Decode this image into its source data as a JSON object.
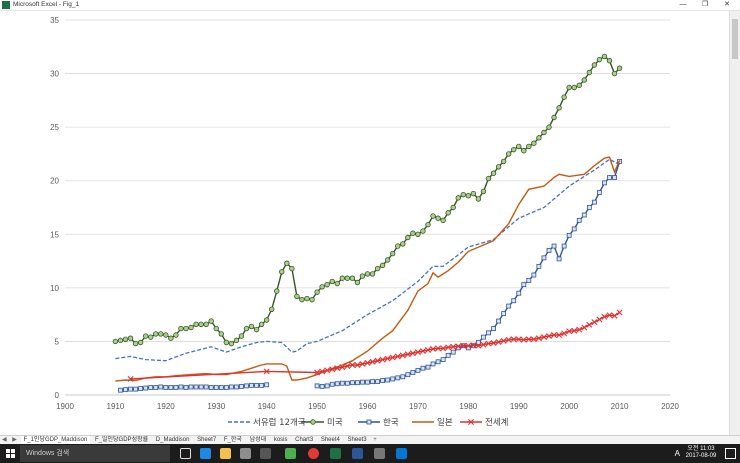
{
  "window": {
    "title": "Microsoft Excel - Fig_1",
    "minimize_glyph": "—",
    "restore_glyph": "❐",
    "close_glyph": "✕"
  },
  "sheet_tabs": [
    "F_1인당GDP_Maddison",
    "F_일인당GDP성장률",
    "D_Maddison",
    "Sheet7",
    "F_한국",
    "남성대",
    "kosis",
    "Chart3",
    "Sheet4",
    "Sheet3"
  ],
  "sheet_tab_nav": [
    "◀",
    "▶",
    "+"
  ],
  "taskbar": {
    "search_placeholder": "Windows 검색",
    "time": "오전 11:03",
    "date": "2017-08-09",
    "lang": "A"
  },
  "colors": {
    "west_europe": "#4472c4",
    "usa": "#375623",
    "usa_marker_fill": "#a9d08e",
    "korea": "#2f5597",
    "korea_marker_fill": "#dae3f3",
    "japan": "#c55a11",
    "world": "#e03030"
  },
  "chart_data": {
    "type": "line",
    "xlim": [
      1900,
      2020
    ],
    "ylim": [
      0,
      35
    ],
    "x_ticks": [
      1900,
      1910,
      1920,
      1930,
      1940,
      1950,
      1960,
      1970,
      1980,
      1990,
      2000,
      2010,
      2020
    ],
    "y_ticks": [
      0,
      5,
      10,
      15,
      20,
      25,
      30,
      35
    ],
    "grid": "horizontal",
    "legend_placement": "bottom",
    "series": [
      {
        "name": "서유럽 12개국",
        "style": "dashed",
        "x": [
          1910,
          1913,
          1916,
          1920,
          1924,
          1929,
          1932,
          1935,
          1938,
          1940,
          1943,
          1945,
          1946,
          1948,
          1950,
          1955,
          1960,
          1965,
          1970,
          1973,
          1975,
          1980,
          1985,
          1990,
          1995,
          2000,
          2005,
          2008,
          2010
        ],
        "values": [
          3.4,
          3.6,
          3.3,
          3.2,
          3.9,
          4.5,
          4.0,
          4.5,
          4.9,
          5.0,
          4.9,
          4.0,
          4.1,
          4.8,
          5.0,
          6.0,
          7.5,
          8.8,
          10.6,
          12.0,
          12.0,
          13.8,
          14.5,
          16.5,
          17.5,
          19.5,
          21.0,
          22.0,
          21.5
        ]
      },
      {
        "name": "미국",
        "style": "solid-circle",
        "x": [
          1910,
          1911,
          1912,
          1913,
          1914,
          1915,
          1916,
          1917,
          1918,
          1919,
          1920,
          1921,
          1922,
          1923,
          1924,
          1925,
          1926,
          1927,
          1928,
          1929,
          1930,
          1931,
          1932,
          1933,
          1934,
          1935,
          1936,
          1937,
          1938,
          1939,
          1940,
          1941,
          1942,
          1943,
          1944,
          1945,
          1946,
          1947,
          1948,
          1949,
          1950,
          1951,
          1952,
          1953,
          1954,
          1955,
          1956,
          1957,
          1958,
          1959,
          1960,
          1961,
          1962,
          1963,
          1964,
          1965,
          1966,
          1967,
          1968,
          1969,
          1970,
          1971,
          1972,
          1973,
          1974,
          1975,
          1976,
          1977,
          1978,
          1979,
          1980,
          1981,
          1982,
          1983,
          1984,
          1985,
          1986,
          1987,
          1988,
          1989,
          1990,
          1991,
          1992,
          1993,
          1994,
          1995,
          1996,
          1997,
          1998,
          1999,
          2000,
          2001,
          2002,
          2003,
          2004,
          2005,
          2006,
          2007,
          2008,
          2009,
          2010
        ],
        "values": [
          5.0,
          5.1,
          5.2,
          5.3,
          4.8,
          4.9,
          5.5,
          5.4,
          5.7,
          5.7,
          5.6,
          5.3,
          5.6,
          6.2,
          6.2,
          6.3,
          6.6,
          6.6,
          6.6,
          6.9,
          6.2,
          5.7,
          4.9,
          4.8,
          5.1,
          5.5,
          6.2,
          6.4,
          6.1,
          6.6,
          7.0,
          8.0,
          9.7,
          11.5,
          12.3,
          11.8,
          9.2,
          8.9,
          9.0,
          8.9,
          9.6,
          10.1,
          10.3,
          10.6,
          10.4,
          10.9,
          10.9,
          10.9,
          10.5,
          11.1,
          11.3,
          11.3,
          11.8,
          12.1,
          12.6,
          13.2,
          13.9,
          14.1,
          14.7,
          15.1,
          15.0,
          15.3,
          15.9,
          16.7,
          16.5,
          16.3,
          17.0,
          17.5,
          18.4,
          18.7,
          18.6,
          18.8,
          18.3,
          19.0,
          20.2,
          20.7,
          21.3,
          21.8,
          22.5,
          22.9,
          23.2,
          22.8,
          23.2,
          23.5,
          24.0,
          24.5,
          25.0,
          25.9,
          26.8,
          27.8,
          28.7,
          28.7,
          28.9,
          29.4,
          30.1,
          30.8,
          31.3,
          31.6,
          31.2,
          30.0,
          30.5
        ]
      },
      {
        "name": "한국",
        "style": "solid-square",
        "x": [
          1911,
          1912,
          1913,
          1914,
          1915,
          1916,
          1917,
          1918,
          1919,
          1920,
          1921,
          1922,
          1923,
          1924,
          1925,
          1926,
          1927,
          1928,
          1929,
          1930,
          1931,
          1932,
          1933,
          1934,
          1935,
          1936,
          1937,
          1938,
          1939,
          1940,
          1950,
          1951,
          1952,
          1953,
          1954,
          1955,
          1956,
          1957,
          1958,
          1959,
          1960,
          1961,
          1962,
          1963,
          1964,
          1965,
          1966,
          1967,
          1968,
          1969,
          1970,
          1971,
          1972,
          1973,
          1974,
          1975,
          1976,
          1977,
          1978,
          1979,
          1980,
          1981,
          1982,
          1983,
          1984,
          1985,
          1986,
          1987,
          1988,
          1989,
          1990,
          1991,
          1992,
          1993,
          1994,
          1995,
          1996,
          1997,
          1998,
          1999,
          2000,
          2001,
          2002,
          2003,
          2004,
          2005,
          2006,
          2007,
          2008,
          2009,
          2010
        ],
        "values": [
          0.45,
          0.5,
          0.55,
          0.55,
          0.6,
          0.65,
          0.7,
          0.7,
          0.75,
          0.7,
          0.7,
          0.7,
          0.75,
          0.7,
          0.75,
          0.75,
          0.75,
          0.75,
          0.7,
          0.7,
          0.7,
          0.7,
          0.75,
          0.75,
          0.8,
          0.85,
          0.9,
          0.9,
          0.9,
          0.95,
          0.85,
          0.8,
          0.85,
          1.0,
          1.05,
          1.1,
          1.1,
          1.15,
          1.15,
          1.2,
          1.2,
          1.25,
          1.25,
          1.35,
          1.4,
          1.5,
          1.6,
          1.7,
          1.9,
          2.1,
          2.3,
          2.5,
          2.6,
          2.9,
          3.1,
          3.3,
          3.7,
          4.0,
          4.4,
          4.6,
          4.4,
          4.6,
          4.9,
          5.4,
          5.8,
          6.2,
          6.9,
          7.6,
          8.3,
          8.8,
          9.5,
          10.3,
          10.7,
          11.2,
          12.0,
          12.8,
          13.5,
          13.9,
          12.7,
          13.9,
          14.9,
          15.5,
          16.3,
          16.8,
          17.5,
          18.0,
          18.9,
          19.8,
          20.3,
          20.3,
          21.8
        ]
      },
      {
        "name": "일본",
        "style": "solid",
        "x": [
          1910,
          1912,
          1914,
          1916,
          1918,
          1920,
          1922,
          1925,
          1928,
          1930,
          1932,
          1935,
          1937,
          1939,
          1940,
          1941,
          1943,
          1944,
          1945,
          1946,
          1948,
          1950,
          1952,
          1955,
          1957,
          1960,
          1963,
          1965,
          1968,
          1970,
          1972,
          1973,
          1974,
          1976,
          1978,
          1980,
          1983,
          1985,
          1988,
          1990,
          1992,
          1995,
          1997,
          1998,
          2000,
          2003,
          2005,
          2007,
          2008,
          2009,
          2010
        ],
        "values": [
          1.3,
          1.4,
          1.35,
          1.6,
          1.7,
          1.7,
          1.8,
          1.9,
          2.0,
          1.9,
          1.9,
          2.2,
          2.5,
          2.8,
          2.9,
          2.9,
          2.9,
          2.7,
          1.4,
          1.4,
          1.6,
          1.9,
          2.3,
          2.8,
          3.2,
          4.1,
          5.3,
          6.0,
          7.9,
          9.7,
          10.4,
          11.4,
          11.0,
          11.6,
          12.4,
          13.4,
          14.0,
          14.4,
          16.0,
          17.8,
          19.2,
          19.5,
          20.3,
          20.6,
          20.4,
          20.6,
          21.4,
          22.1,
          22.2,
          20.8,
          21.9
        ]
      },
      {
        "name": "전세계",
        "style": "solid-x",
        "x": [
          1913,
          1940,
          1950,
          1951,
          1952,
          1953,
          1954,
          1955,
          1956,
          1957,
          1958,
          1959,
          1960,
          1961,
          1962,
          1963,
          1964,
          1965,
          1966,
          1967,
          1968,
          1969,
          1970,
          1971,
          1972,
          1973,
          1974,
          1975,
          1976,
          1977,
          1978,
          1979,
          1980,
          1981,
          1982,
          1983,
          1984,
          1985,
          1986,
          1987,
          1988,
          1989,
          1990,
          1991,
          1992,
          1993,
          1994,
          1995,
          1996,
          1997,
          1998,
          1999,
          2000,
          2001,
          2002,
          2003,
          2004,
          2005,
          2006,
          2007,
          2008,
          2009,
          2010
        ],
        "values": [
          1.5,
          2.2,
          2.1,
          2.2,
          2.3,
          2.4,
          2.5,
          2.6,
          2.7,
          2.8,
          2.8,
          2.9,
          3.0,
          3.1,
          3.2,
          3.3,
          3.4,
          3.5,
          3.6,
          3.7,
          3.8,
          3.9,
          4.0,
          4.1,
          4.2,
          4.3,
          4.35,
          4.35,
          4.45,
          4.5,
          4.55,
          4.6,
          4.6,
          4.65,
          4.6,
          4.7,
          4.8,
          4.85,
          4.95,
          5.05,
          5.15,
          5.2,
          5.2,
          5.15,
          5.2,
          5.2,
          5.3,
          5.4,
          5.5,
          5.6,
          5.6,
          5.75,
          5.95,
          6.0,
          6.1,
          6.3,
          6.55,
          6.8,
          7.05,
          7.3,
          7.45,
          7.4,
          7.7
        ]
      }
    ]
  }
}
